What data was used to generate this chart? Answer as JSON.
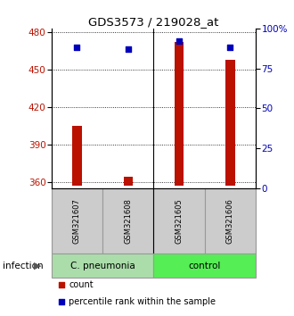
{
  "title": "GDS3573 / 219028_at",
  "samples": [
    "GSM321607",
    "GSM321608",
    "GSM321605",
    "GSM321606"
  ],
  "bar_values": [
    405,
    364,
    472,
    458
  ],
  "percentile_values": [
    88,
    87,
    92,
    88
  ],
  "bar_color": "#bb1100",
  "percentile_color": "#0000bb",
  "ylim_left": [
    355,
    483
  ],
  "yticks_left": [
    360,
    390,
    420,
    450,
    480
  ],
  "ylim_right": [
    0,
    100
  ],
  "yticks_right": [
    0,
    25,
    50,
    75,
    100
  ],
  "yticklabels_right": [
    "0",
    "25",
    "50",
    "75",
    "100%"
  ],
  "groups": [
    {
      "label": "C. pneumonia",
      "color": "#aaddaa"
    },
    {
      "label": "control",
      "color": "#55ee55"
    }
  ],
  "group_label": "infection",
  "legend_items": [
    {
      "color": "#bb1100",
      "label": "count"
    },
    {
      "color": "#0000bb",
      "label": "percentile rank within the sample"
    }
  ],
  "bar_bottom": 357,
  "bar_width": 0.18,
  "background_color": "#ffffff",
  "label_box_color": "#cccccc",
  "label_box_edge": "#999999"
}
